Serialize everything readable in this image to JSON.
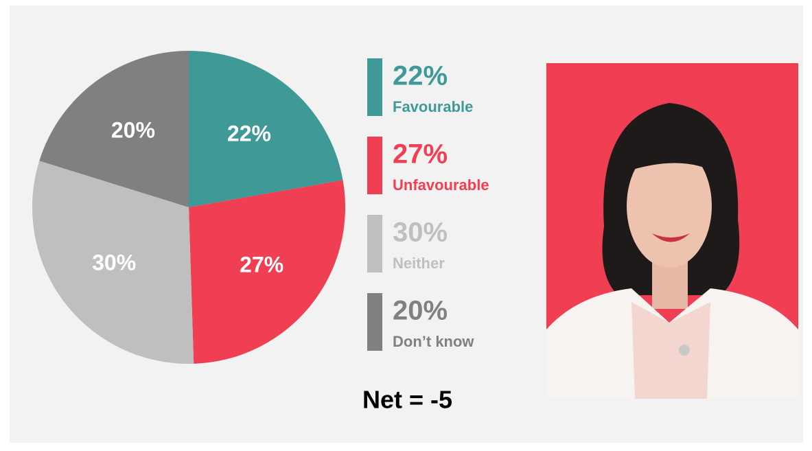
{
  "chart_data": {
    "type": "pie",
    "categories": [
      "Favourable",
      "Unfavourable",
      "Neither",
      "Don’t know"
    ],
    "values": [
      22,
      27,
      30,
      20
    ],
    "value_labels": [
      "22%",
      "27%",
      "30%",
      "20%"
    ],
    "colors": [
      "#3f9a97",
      "#f03e52",
      "#bfbfbf",
      "#808080"
    ],
    "annotation": "Net = -5"
  }
}
